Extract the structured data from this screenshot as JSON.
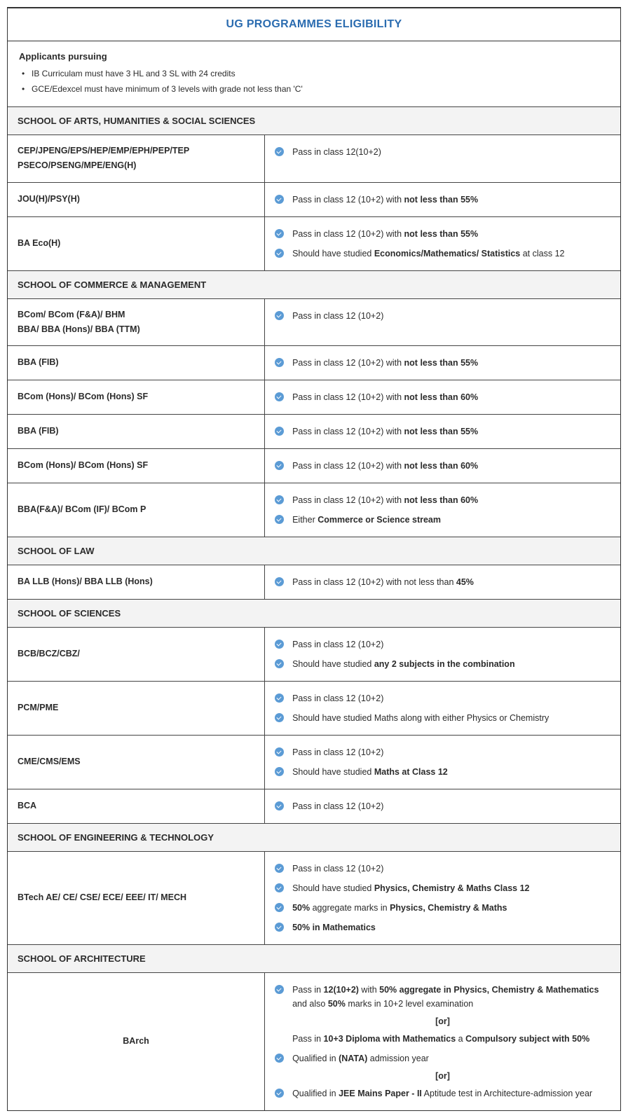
{
  "colors": {
    "title_color": "#2b6cb0",
    "border_color": "#333333",
    "header_bg": "#f3f3f3",
    "check_bg": "#5b9bd5",
    "text_color": "#2b2b2b"
  },
  "title": "UG PROGRAMMES ELIGIBILITY",
  "intro": {
    "heading": "Applicants pursuing",
    "bullets": [
      "IB Curriculam must have 3 HL and 3 SL with 24 credits",
      "GCE/Edexcel must have minimum of 3 levels with  grade not less than 'C'"
    ]
  },
  "sections": [
    {
      "header": "SCHOOL OF ARTS, HUMANITIES & SOCIAL SCIENCES",
      "rows": [
        {
          "program_html": "CEP/JPENG/EPS/HEP/EMP/EPH/PEP/TEP<br>PSECO/PSENG/MPE/ENG(H)",
          "reqs": [
            {
              "html": "Pass in  class 12(10+2)"
            }
          ]
        },
        {
          "program_html": "JOU(H)/PSY(H)",
          "reqs": [
            {
              "html": "Pass in class 12 (10+2) with <b>not less than 55%</b>"
            }
          ]
        },
        {
          "program_html": "BA Eco(H)",
          "reqs": [
            {
              "html": "Pass in class 12 (10+2) with <b>not less than 55%</b>"
            },
            {
              "html": "Should have studied <b>Economics/Mathematics/ Statistics</b> at class 12"
            }
          ]
        }
      ]
    },
    {
      "header": "SCHOOL OF COMMERCE & MANAGEMENT",
      "rows": [
        {
          "program_html": "BCom/ BCom (F&A)/ BHM<br>BBA/ BBA (Hons)/ BBA (TTM)",
          "reqs": [
            {
              "html": "Pass in class 12 (10+2)"
            }
          ]
        },
        {
          "program_html": "BBA (FIB)",
          "reqs": [
            {
              "html": "Pass in class 12 (10+2) with <b>not less than 55%</b>"
            }
          ]
        },
        {
          "program_html": "BCom (Hons)/ BCom (Hons) SF",
          "reqs": [
            {
              "html": "Pass in class 12 (10+2) with <b>not less than 60%</b>"
            }
          ]
        },
        {
          "program_html": "BBA (FIB)",
          "reqs": [
            {
              "html": "Pass in class 12 (10+2) with <b>not less than 55%</b>"
            }
          ]
        },
        {
          "program_html": "BCom (Hons)/ BCom (Hons) SF",
          "reqs": [
            {
              "html": "Pass in class 12 (10+2) with <b>not less than 60%</b>"
            }
          ]
        },
        {
          "program_html": "BBA(F&A)/ BCom (IF)/ BCom P",
          "reqs": [
            {
              "html": "Pass in class 12 (10+2) with <b>not less than 60%</b>"
            },
            {
              "html": "Either <b>Commerce or Science stream</b>"
            }
          ]
        }
      ]
    },
    {
      "header": "SCHOOL OF LAW",
      "rows": [
        {
          "program_html": "BA LLB (Hons)/ BBA LLB (Hons)",
          "reqs": [
            {
              "html": "Pass in class 12 (10+2) with not less than <b>45%</b>"
            }
          ]
        }
      ]
    },
    {
      "header": "SCHOOL OF SCIENCES",
      "rows": [
        {
          "program_html": "BCB/BCZ/CBZ/",
          "reqs": [
            {
              "html": "Pass in class 12 (10+2)"
            },
            {
              "html": "Should have studied <b>any 2 subjects in the combination</b>"
            }
          ]
        },
        {
          "program_html": "PCM/PME",
          "reqs": [
            {
              "html": "Pass in class 12 (10+2)"
            },
            {
              "html": "Should have studied Maths along with either Physics or Chemistry"
            }
          ]
        },
        {
          "program_html": "CME/CMS/EMS",
          "reqs": [
            {
              "html": "Pass in class 12 (10+2)"
            },
            {
              "html": "Should have studied <b>Maths at Class 12</b>"
            }
          ]
        },
        {
          "program_html": "BCA",
          "reqs": [
            {
              "html": "Pass in class 12 (10+2)"
            }
          ]
        }
      ]
    },
    {
      "header": "SCHOOL  OF ENGINEERING & TECHNOLOGY",
      "rows": [
        {
          "program_html": "BTech AE/ CE/ CSE/ ECE/ EEE/ IT/ MECH",
          "reqs": [
            {
              "html": "Pass in class 12 (10+2)"
            },
            {
              "html": "Should have studied <b>Physics, Chemistry & Maths Class 12</b>"
            },
            {
              "html": "<b>50%</b> aggregate marks in <b>Physics, Chemistry & Maths</b>"
            },
            {
              "html": "<b>50% in Mathematics</b>"
            }
          ]
        }
      ]
    },
    {
      "header": "SCHOOL OF ARCHITECTURE",
      "rows": [
        {
          "program_html": "BArch",
          "program_centered": true,
          "reqs": [
            {
              "html": "Pass in <b>12(10+2)</b> with <b>50% aggregate in Physics, Chemistry & Mathematics</b> and also <b>50%</b> marks in 10+2 level examination"
            },
            {
              "type": "or",
              "html": "[or]"
            },
            {
              "type": "text_only",
              "html": "Pass in <b>10+3 Diploma with Mathematics</b> a  <b>Compulsory subject with 50%</b>"
            },
            {
              "html": "Qualified in <b>(NATA)</b>  admission year"
            },
            {
              "type": "or",
              "html": "[or]"
            },
            {
              "html": "Qualified in <b>JEE Mains Paper - II</b> Aptitude test in Architecture-admission year"
            }
          ]
        }
      ]
    }
  ]
}
